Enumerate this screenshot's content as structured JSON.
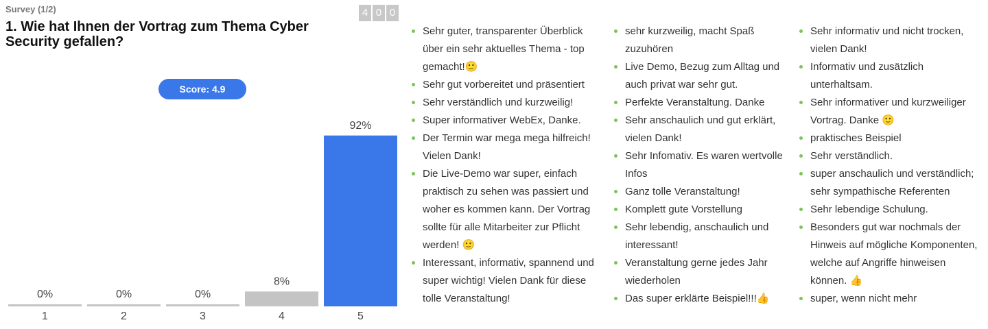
{
  "header": {
    "survey": "Survey (1/2)",
    "question": "1. Wie hat Ihnen der Vortrag zum Thema Cyber Security gefallen?",
    "counter_digits": [
      "4",
      "0",
      "0"
    ],
    "score": "Score: 4.9"
  },
  "chart_data": {
    "type": "bar",
    "categories": [
      "1",
      "2",
      "3",
      "4",
      "5"
    ],
    "values": [
      0,
      0,
      0,
      8,
      92
    ],
    "value_labels": [
      "0%",
      "0%",
      "0%",
      "8%",
      "92%"
    ],
    "colors": [
      "#c4c4c4",
      "#c4c4c4",
      "#c4c4c4",
      "#c4c4c4",
      "#3a78ea"
    ],
    "ylim": [
      0,
      100
    ]
  },
  "comments": [
    [
      "Sehr guter, transparenter Überblick über ein sehr aktuelles Thema - top gemacht!🙂",
      "Sehr gut vorbereitet und präsentiert",
      "Sehr verständlich und kurzweilig!",
      "Super informativer WebEx, Danke.",
      "Der Termin war mega mega hilfreich! Vielen Dank!",
      "Die Live-Demo war super, einfach praktisch zu sehen was passiert und woher es kommen kann. Der Vortrag sollte für alle Mitarbeiter zur Pflicht werden! 🙂",
      "Interessant, informativ, spannend und super wichtig! Vielen Dank für diese tolle Veranstaltung!"
    ],
    [
      "sehr kurzweilig, macht Spaß zuzuhören",
      "Live Demo, Bezug zum Alltag und auch privat war sehr gut.",
      "Perfekte Veranstaltung. Danke",
      "Sehr anschaulich und gut erklärt, vielen Dank!",
      "Sehr Infomativ. Es waren wertvolle Infos",
      "Ganz tolle Veranstaltung!",
      "Komplett gute Vorstellung",
      "Sehr lebendig, anschaulich und interessant!",
      "Veranstaltung gerne jedes Jahr wiederholen",
      "Das super erklärte Beispiel!!!👍"
    ],
    [
      "Sehr informativ und nicht trocken, vielen Dank!",
      "Informativ und zusätzlich unterhaltsam.",
      "Sehr informativer und kurzweiliger Vortrag. Danke 🙂",
      "praktisches Beispiel",
      "Sehr verständlich.",
      "super anschaulich und verständlich; sehr sympathische Referenten",
      "Sehr lebendige Schulung.",
      "Besonders gut war nochmals der Hinweis auf mögliche Komponenten, welche auf Angriffe hinweisen können. 👍",
      "super, wenn nicht mehr"
    ]
  ]
}
